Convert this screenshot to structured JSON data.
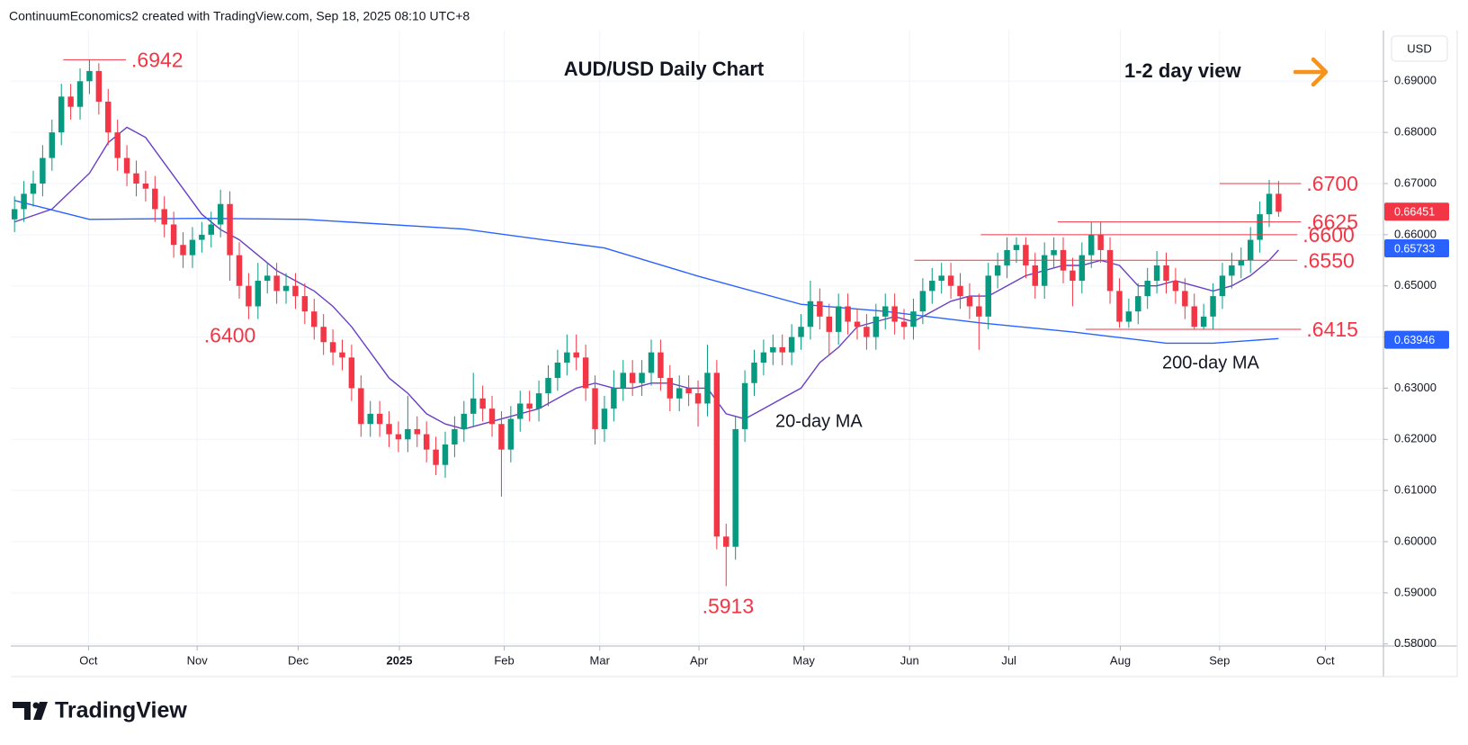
{
  "header": {
    "text": "ContinuumEconomics2 created with TradingView.com, Sep 18, 2025 08:10 UTC+8"
  },
  "chart_data": {
    "type": "candlestick",
    "title": "AUD/USD Daily Chart",
    "subtitle": "1-2 day view",
    "currency": "USD",
    "up_color": "#089981",
    "down_color": "#f23645",
    "grid": true,
    "open": [
      0.663,
      0.665,
      0.668,
      0.67,
      0.675,
      0.68,
      0.687,
      0.685,
      0.69,
      0.692,
      0.686,
      0.68,
      0.675,
      0.672,
      0.67,
      0.669,
      0.665,
      0.662,
      0.658,
      0.656,
      0.659,
      0.66,
      0.662,
      0.666,
      0.656,
      0.65,
      0.646,
      0.651,
      0.652,
      0.649,
      0.65,
      0.648,
      0.645,
      0.642,
      0.639,
      0.637,
      0.636,
      0.63,
      0.623,
      0.625,
      0.623,
      0.621,
      0.62,
      0.622,
      0.621,
      0.618,
      0.615,
      0.619,
      0.622,
      0.625,
      0.628,
      0.626,
      0.623,
      0.618,
      0.624,
      0.627,
      0.626,
      0.629,
      0.632,
      0.635,
      0.637,
      0.636,
      0.63,
      0.622,
      0.626,
      0.63,
      0.633,
      0.631,
      0.633,
      0.637,
      0.632,
      0.628,
      0.63,
      0.629,
      0.627,
      0.633,
      0.601,
      0.599,
      0.622,
      0.631,
      0.635,
      0.637,
      0.638,
      0.637,
      0.64,
      0.642,
      0.647,
      0.644,
      0.641,
      0.646,
      0.643,
      0.642,
      0.64,
      0.644,
      0.646,
      0.643,
      0.642,
      0.645,
      0.649,
      0.651,
      0.652,
      0.65,
      0.648,
      0.646,
      0.644,
      0.652,
      0.654,
      0.657,
      0.658,
      0.654,
      0.65,
      0.656,
      0.657,
      0.653,
      0.651,
      0.656,
      0.66,
      0.657,
      0.649,
      0.643,
      0.645,
      0.648,
      0.651,
      0.654,
      0.651,
      0.649,
      0.646,
      0.642,
      0.644,
      0.648,
      0.652,
      0.654,
      0.655,
      0.659,
      0.664,
      0.668
    ],
    "high": [
      0.6675,
      0.6705,
      0.6725,
      0.6775,
      0.6825,
      0.6895,
      0.6895,
      0.6925,
      0.6942,
      0.6935,
      0.6885,
      0.6825,
      0.6775,
      0.6745,
      0.6725,
      0.6715,
      0.6675,
      0.6645,
      0.6605,
      0.6615,
      0.6625,
      0.6645,
      0.6688,
      0.6685,
      0.6585,
      0.6525,
      0.6545,
      0.6545,
      0.6545,
      0.6525,
      0.6525,
      0.6505,
      0.6475,
      0.6445,
      0.6415,
      0.6395,
      0.6385,
      0.6325,
      0.6275,
      0.6275,
      0.6255,
      0.6235,
      0.6285,
      0.6245,
      0.6235,
      0.6205,
      0.6215,
      0.6245,
      0.6275,
      0.633,
      0.6305,
      0.6285,
      0.6255,
      0.6265,
      0.6295,
      0.6295,
      0.6315,
      0.6345,
      0.6375,
      0.6405,
      0.6405,
      0.6385,
      0.6325,
      0.6285,
      0.6335,
      0.6355,
      0.6355,
      0.6355,
      0.6395,
      0.6395,
      0.6345,
      0.6325,
      0.6325,
      0.6315,
      0.6385,
      0.6355,
      0.6035,
      0.6245,
      0.6335,
      0.6375,
      0.6395,
      0.6405,
      0.6405,
      0.6425,
      0.6445,
      0.651,
      0.6495,
      0.6465,
      0.6485,
      0.6485,
      0.6455,
      0.6445,
      0.6465,
      0.6485,
      0.6485,
      0.6455,
      0.6475,
      0.6515,
      0.6535,
      0.6545,
      0.6545,
      0.6525,
      0.6505,
      0.6485,
      0.6545,
      0.6565,
      0.6595,
      0.6595,
      0.6595,
      0.6565,
      0.6585,
      0.6595,
      0.6595,
      0.6555,
      0.6585,
      0.6625,
      0.6625,
      0.6595,
      0.6515,
      0.6475,
      0.6505,
      0.6535,
      0.6568,
      0.6565,
      0.6535,
      0.6515,
      0.6485,
      0.6465,
      0.6505,
      0.6545,
      0.6565,
      0.6575,
      0.6615,
      0.6665,
      0.6707,
      0.6705
    ],
    "low": [
      0.6605,
      0.6625,
      0.6655,
      0.6675,
      0.6725,
      0.6775,
      0.6825,
      0.6825,
      0.6875,
      0.6835,
      0.6775,
      0.6725,
      0.6695,
      0.6675,
      0.6665,
      0.6625,
      0.6595,
      0.6555,
      0.6535,
      0.6535,
      0.6565,
      0.6575,
      0.6595,
      0.651,
      0.6475,
      0.6435,
      0.6435,
      0.6485,
      0.6465,
      0.6465,
      0.6455,
      0.6425,
      0.6395,
      0.6365,
      0.6345,
      0.6335,
      0.6275,
      0.6205,
      0.6205,
      0.6205,
      0.6185,
      0.6175,
      0.6175,
      0.6185,
      0.6155,
      0.613,
      0.6125,
      0.6165,
      0.6195,
      0.6225,
      0.6235,
      0.6205,
      0.6088,
      0.6155,
      0.6215,
      0.6235,
      0.6235,
      0.6265,
      0.6295,
      0.6325,
      0.6335,
      0.6275,
      0.619,
      0.6195,
      0.6235,
      0.6275,
      0.6285,
      0.6285,
      0.6305,
      0.6295,
      0.6255,
      0.6255,
      0.6265,
      0.6225,
      0.6245,
      0.5985,
      0.5913,
      0.5965,
      0.6195,
      0.6285,
      0.6325,
      0.6345,
      0.6345,
      0.6345,
      0.6375,
      0.6395,
      0.6415,
      0.6365,
      0.6385,
      0.6405,
      0.6395,
      0.6375,
      0.6375,
      0.6415,
      0.6405,
      0.6395,
      0.6395,
      0.6425,
      0.6465,
      0.6485,
      0.6475,
      0.6455,
      0.6435,
      0.6375,
      0.6415,
      0.6495,
      0.6515,
      0.6545,
      0.6515,
      0.6475,
      0.6475,
      0.6535,
      0.6505,
      0.646,
      0.6485,
      0.6535,
      0.6545,
      0.6465,
      0.6418,
      0.6418,
      0.6425,
      0.6455,
      0.6485,
      0.6485,
      0.6465,
      0.6435,
      0.6415,
      0.6415,
      0.6415,
      0.6455,
      0.6495,
      0.6515,
      0.6525,
      0.6565,
      0.6615,
      0.6635
    ],
    "close": [
      0.665,
      0.668,
      0.67,
      0.675,
      0.68,
      0.687,
      0.685,
      0.69,
      0.692,
      0.686,
      0.68,
      0.675,
      0.672,
      0.67,
      0.669,
      0.665,
      0.662,
      0.658,
      0.656,
      0.659,
      0.66,
      0.662,
      0.666,
      0.656,
      0.65,
      0.646,
      0.651,
      0.652,
      0.649,
      0.65,
      0.648,
      0.645,
      0.642,
      0.639,
      0.637,
      0.636,
      0.63,
      0.623,
      0.625,
      0.623,
      0.621,
      0.62,
      0.622,
      0.621,
      0.618,
      0.615,
      0.619,
      0.622,
      0.625,
      0.628,
      0.626,
      0.623,
      0.618,
      0.624,
      0.627,
      0.626,
      0.629,
      0.632,
      0.635,
      0.637,
      0.636,
      0.63,
      0.622,
      0.626,
      0.63,
      0.633,
      0.631,
      0.633,
      0.637,
      0.632,
      0.628,
      0.63,
      0.629,
      0.627,
      0.633,
      0.601,
      0.599,
      0.622,
      0.631,
      0.635,
      0.637,
      0.638,
      0.637,
      0.64,
      0.642,
      0.647,
      0.644,
      0.641,
      0.646,
      0.643,
      0.642,
      0.64,
      0.644,
      0.646,
      0.643,
      0.642,
      0.645,
      0.649,
      0.651,
      0.652,
      0.65,
      0.648,
      0.646,
      0.644,
      0.652,
      0.654,
      0.657,
      0.658,
      0.654,
      0.65,
      0.656,
      0.657,
      0.653,
      0.651,
      0.656,
      0.66,
      0.657,
      0.649,
      0.643,
      0.645,
      0.648,
      0.651,
      0.654,
      0.651,
      0.649,
      0.646,
      0.642,
      0.644,
      0.648,
      0.652,
      0.654,
      0.655,
      0.659,
      0.664,
      0.668,
      0.6645
    ],
    "xlim": [
      -0.4,
      146.2
    ],
    "xticks": [
      {
        "value": 7.9,
        "label": "Oct"
      },
      {
        "value": 19.5,
        "label": "Nov"
      },
      {
        "value": 30.3,
        "label": "Dec"
      },
      {
        "value": 41.1,
        "label": "2025"
      },
      {
        "value": 52.3,
        "label": "Feb"
      },
      {
        "value": 62.5,
        "label": "Mar"
      },
      {
        "value": 73.1,
        "label": "Apr"
      },
      {
        "value": 84.3,
        "label": "May"
      },
      {
        "value": 95.6,
        "label": "Jun"
      },
      {
        "value": 106.2,
        "label": "Jul"
      },
      {
        "value": 118.1,
        "label": "Aug"
      },
      {
        "value": 128.7,
        "label": "Sep"
      },
      {
        "value": 140.0,
        "label": "Oct"
      }
    ],
    "ylim": [
      0.5796,
      0.6999
    ],
    "yticks": [
      {
        "value": 0.58,
        "label": "0.58000"
      },
      {
        "value": 0.59,
        "label": "0.59000"
      },
      {
        "value": 0.6,
        "label": "0.60000"
      },
      {
        "value": 0.61,
        "label": "0.61000"
      },
      {
        "value": 0.62,
        "label": "0.62000"
      },
      {
        "value": 0.63,
        "label": "0.63000"
      },
      {
        "value": 0.64,
        "label": "0.64000"
      },
      {
        "value": 0.65,
        "label": "0.65000"
      },
      {
        "value": 0.66,
        "label": "0.66000"
      },
      {
        "value": 0.67,
        "label": "0.67000"
      },
      {
        "value": 0.68,
        "label": "0.68000"
      },
      {
        "value": 0.69,
        "label": "0.69000"
      }
    ],
    "lines": [
      {
        "name": "20-day MA",
        "color": "#6a3fc4",
        "x": [
          0,
          4,
          8,
          10,
          12,
          14,
          16,
          18,
          20,
          22,
          24,
          26,
          28,
          30,
          32,
          34,
          36,
          38,
          40,
          42,
          44,
          46,
          48,
          50,
          52,
          54,
          56,
          58,
          60,
          62,
          64,
          66,
          68,
          70,
          72,
          74,
          76,
          78,
          80,
          82,
          84,
          86,
          88,
          90,
          92,
          94,
          96,
          98,
          100,
          102,
          104,
          106,
          108,
          110,
          112,
          114,
          116,
          118,
          120,
          122,
          124,
          126,
          128,
          130,
          132,
          134,
          135
        ],
        "values": [
          0.6625,
          0.665,
          0.672,
          0.678,
          0.681,
          0.679,
          0.674,
          0.669,
          0.664,
          0.661,
          0.659,
          0.656,
          0.653,
          0.651,
          0.649,
          0.646,
          0.642,
          0.637,
          0.632,
          0.629,
          0.625,
          0.623,
          0.622,
          0.623,
          0.624,
          0.625,
          0.626,
          0.628,
          0.63,
          0.631,
          0.63,
          0.63,
          0.631,
          0.631,
          0.63,
          0.63,
          0.625,
          0.624,
          0.626,
          0.628,
          0.63,
          0.635,
          0.638,
          0.642,
          0.643,
          0.644,
          0.643,
          0.645,
          0.647,
          0.648,
          0.648,
          0.65,
          0.652,
          0.653,
          0.654,
          0.654,
          0.655,
          0.654,
          0.65,
          0.65,
          0.651,
          0.65,
          0.649,
          0.65,
          0.652,
          0.655,
          0.657
        ]
      },
      {
        "name": "200-day MA",
        "color": "#2962ff",
        "x": [
          0,
          8,
          20,
          31,
          48,
          63,
          73,
          84,
          93,
          103,
          113,
          123,
          128,
          135
        ],
        "values": [
          0.6667,
          0.663,
          0.6632,
          0.663,
          0.6611,
          0.6574,
          0.6519,
          0.6464,
          0.645,
          0.6428,
          0.641,
          0.6388,
          0.6388,
          0.6397
        ]
      }
    ],
    "levels": [
      {
        "value": 0.6942,
        "label": ".6942",
        "x_range": [
          5.2,
          11.9
        ]
      },
      {
        "value": 0.67,
        "label": ".6700",
        "x_range": [
          128.7,
          137.4
        ]
      },
      {
        "value": 0.6625,
        "label": ".6625",
        "x_range": [
          111.4,
          137.4
        ]
      },
      {
        "value": 0.66,
        "label": ".6600",
        "x_range": [
          103.2,
          137.0
        ]
      },
      {
        "value": 0.655,
        "label": ".6550",
        "x_range": [
          96.1,
          137.0
        ]
      },
      {
        "value": 0.6415,
        "label": ".6415",
        "x_range": [
          114.4,
          137.4
        ]
      }
    ],
    "annotations": [
      {
        "value": 0.64,
        "label": ".6400",
        "x": 23.0
      },
      {
        "value": 0.5913,
        "label": ".5913",
        "x": 76.2
      }
    ],
    "price_labels": [
      {
        "value": 0.66451,
        "label": "0.66451",
        "color": "#f23645"
      },
      {
        "value": 0.65733,
        "label": "0.65733",
        "color": "#2962ff"
      },
      {
        "value": 0.63946,
        "label": "0.63946",
        "color": "#2962ff"
      }
    ]
  },
  "footer": {
    "logo": "TradingView"
  }
}
